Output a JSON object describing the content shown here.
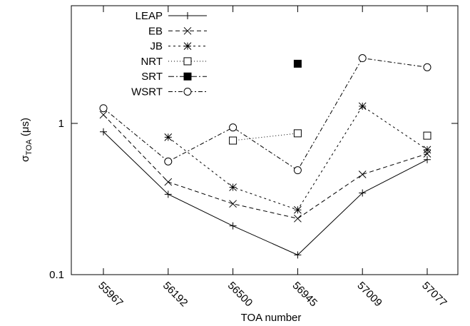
{
  "chart_data": {
    "type": "line",
    "x_label": "TOA number",
    "y_label": [
      "σ",
      "TOA",
      " (μs)"
    ],
    "categories": [
      "55967",
      "56192",
      "56500",
      "56945",
      "57009",
      "57077"
    ],
    "log_y": true,
    "ylim": [
      0.1,
      6
    ],
    "yticks": [
      0.1,
      1
    ],
    "legend": "top-left",
    "series": [
      {
        "name": "LEAP",
        "color": "#000000",
        "dash": "solid",
        "marker": "plus",
        "values": [
          0.88,
          0.34,
          0.21,
          0.135,
          0.347,
          0.576
        ]
      },
      {
        "name": "EB",
        "color": "#000000",
        "dash": "dashed",
        "marker": "cross",
        "values": [
          1.14,
          0.41,
          0.294,
          0.235,
          0.46,
          0.63
        ]
      },
      {
        "name": "JB",
        "color": "#000000",
        "dash": "short-dashed",
        "marker": "star",
        "values": [
          null,
          0.81,
          0.378,
          0.268,
          1.3,
          0.67
        ]
      },
      {
        "name": "NRT",
        "color": "#000000",
        "dash": "dotted",
        "marker": "open-square",
        "values": [
          null,
          null,
          0.77,
          0.86,
          null,
          0.83
        ]
      },
      {
        "name": "SRT",
        "color": "#000000",
        "dash": "dash-dot",
        "marker": "filled-square",
        "values": [
          null,
          null,
          null,
          2.48,
          null,
          null
        ]
      },
      {
        "name": "WSRT",
        "color": "#000000",
        "dash": "dash-dot-short",
        "marker": "open-circle",
        "values": [
          1.26,
          0.56,
          0.94,
          0.49,
          2.7,
          2.35
        ]
      }
    ]
  }
}
